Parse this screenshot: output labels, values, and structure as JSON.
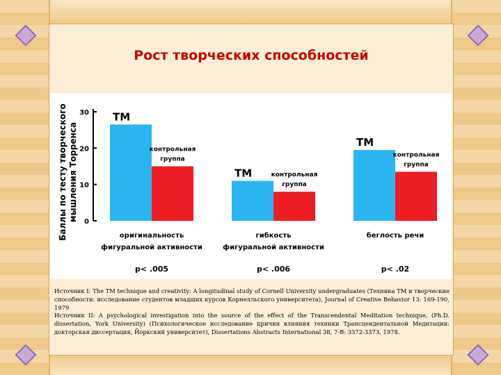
{
  "slide": {
    "title": "Рост творческих способностей",
    "sources": [
      "Источник I: The TM technique and creativity: A longitudinal study of Cornell University undergraduates (Техника ТМ и творческие способности: исследование студентов младших курсов Корнелльского университета), Journal of Creative Behavior 13: 169-190, 1979",
      "Источник II: A psychological investigation into the source of the effect of the Transcendental Meditation technique, (Ph.D. dissertation, York University) (Психологическое исследование причин влияния техники Трансцендентальной Медитации: докторская диссертация, Йоркский университет), Dissertations Abstracts International 38, 7-B: 3372-3373, 1978."
    ]
  },
  "chart_data": {
    "type": "bar",
    "ylabel_lines": [
      "Баллы по тесту творческого",
      "мышления Торренса"
    ],
    "ylim": [
      0,
      30
    ],
    "yticks": [
      "0",
      "10",
      "20",
      "30"
    ],
    "categories": [
      {
        "lines": [
          "оригинальность",
          "фигуральной активности"
        ],
        "p": "p< .005"
      },
      {
        "lines": [
          "гибкость",
          "фигуральной активности"
        ],
        "p": "p< .006"
      },
      {
        "lines": [
          "беглость речи"
        ],
        "p": "p< .02"
      }
    ],
    "series": [
      {
        "name": "ТМ",
        "color": "#29b6f0",
        "values": [
          26.5,
          11,
          19.5
        ]
      },
      {
        "name_lines": [
          "контрольная",
          "группа"
        ],
        "color": "#ee1c24",
        "values": [
          15,
          8,
          13.5
        ]
      }
    ]
  }
}
